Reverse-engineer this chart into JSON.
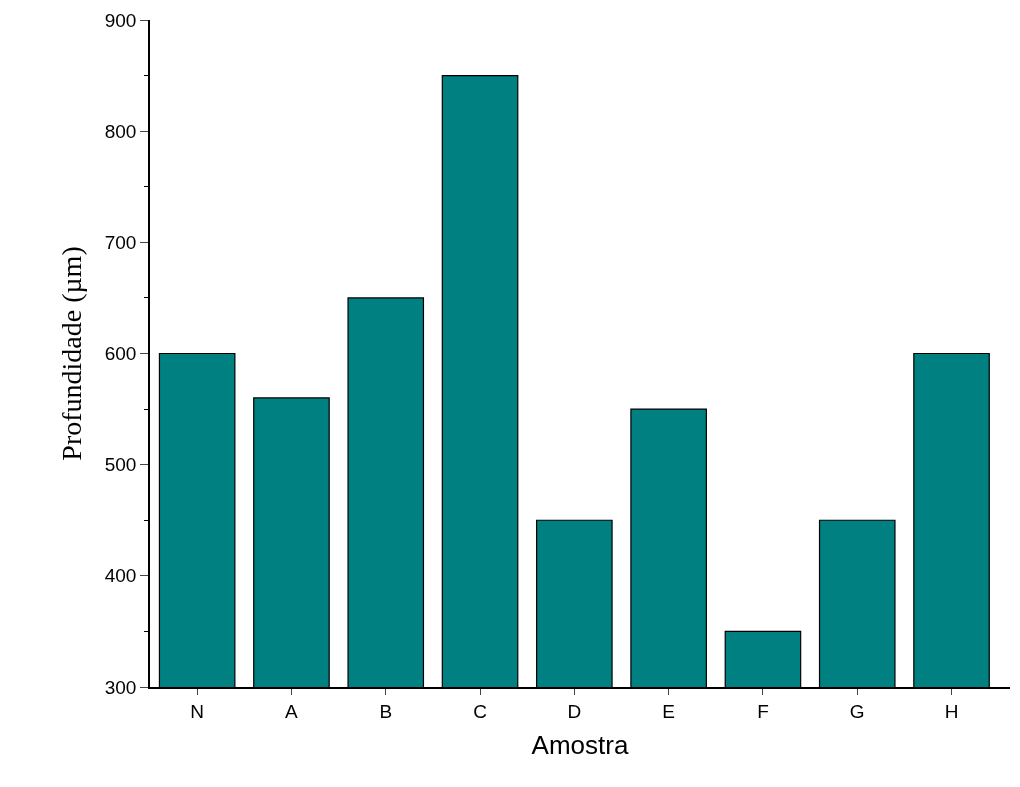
{
  "chart_data": {
    "type": "bar",
    "xlabel": "Amostra",
    "ylabel": "Profundidade (µm)",
    "categories": [
      "N",
      "A",
      "B",
      "C",
      "D",
      "E",
      "F",
      "G",
      "H"
    ],
    "values": [
      600,
      560,
      650,
      850,
      450,
      550,
      350,
      450,
      600
    ],
    "color": "#008080",
    "ylim": [
      300,
      900
    ],
    "yticks": [
      300,
      400,
      500,
      600,
      700,
      800,
      900
    ],
    "legend": false
  }
}
